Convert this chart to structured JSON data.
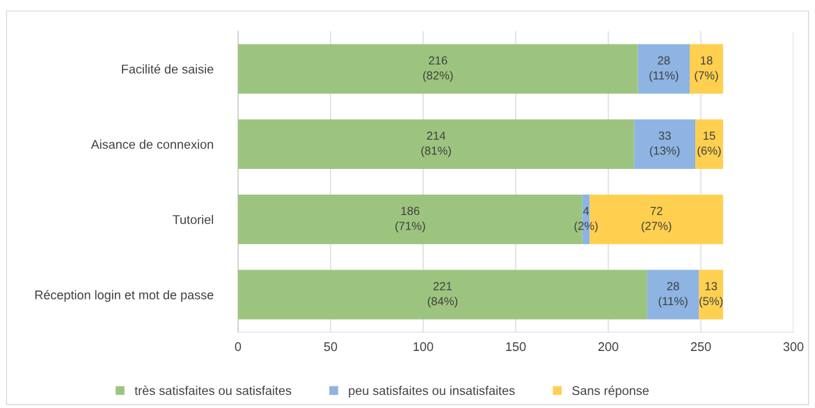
{
  "chart_data": {
    "type": "bar",
    "orientation": "horizontal",
    "stacked": true,
    "categories": [
      "Facilité de saisie",
      "Aisance de connexion",
      "Tutoriel",
      "Réception login et mot de passe"
    ],
    "series": [
      {
        "name": "très satisfaites ou satisfaites",
        "color": "#9dc47f",
        "values": [
          216,
          214,
          186,
          221
        ],
        "value_labels": [
          "216\n(82%)",
          "214\n(81%)",
          "186\n(71%)",
          "221\n(84%)"
        ]
      },
      {
        "name": "peu satisfaites ou insatisfaites",
        "color": "#8db4e2",
        "values": [
          28,
          33,
          4,
          28
        ],
        "value_labels": [
          "28\n(11%)",
          "33\n(13%)",
          "4\n(2%)",
          "28\n(11%)"
        ]
      },
      {
        "name": "Sans réponse",
        "color": "#ffd04f",
        "values": [
          18,
          15,
          72,
          13
        ],
        "value_labels": [
          "18\n(7%)",
          "15\n(6%)",
          "72\n(27%)",
          "13\n(5%)"
        ]
      }
    ],
    "xlim": [
      0,
      300
    ],
    "xticks": [
      0,
      50,
      100,
      150,
      200,
      250,
      300
    ],
    "grid": "x",
    "legend": "bottom"
  }
}
